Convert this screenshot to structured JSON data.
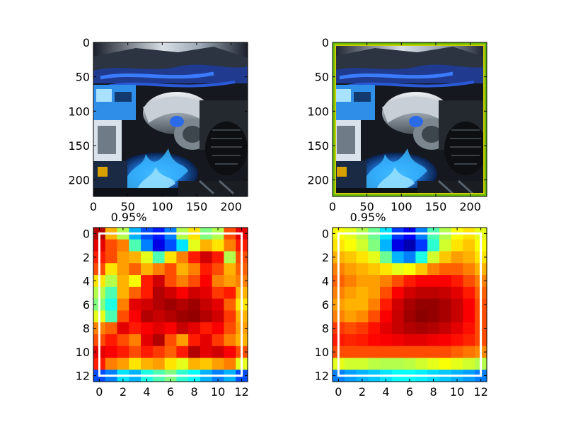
{
  "chart_data": [
    {
      "type": "image",
      "content": "photograph of a car engine bay with blue flame decals",
      "xticks": [
        0,
        50,
        100,
        150,
        200
      ],
      "yticks": [
        0,
        50,
        100,
        150,
        200
      ],
      "xlim": [
        0,
        224
      ],
      "ylim": [
        224,
        0
      ],
      "title": "",
      "frame_color": "#000000"
    },
    {
      "type": "image",
      "content": "same photograph with green bounding box outline",
      "xticks": [
        0,
        50,
        100,
        150,
        200
      ],
      "yticks": [
        0,
        50,
        100,
        150,
        200
      ],
      "xlim": [
        0,
        224
      ],
      "ylim": [
        224,
        0
      ],
      "title": "",
      "box_color": "#66bb00",
      "box_inner_color": "#cccc00"
    },
    {
      "type": "heatmap",
      "colormap": "jet",
      "title": "0.95%",
      "xticks": [
        0,
        2,
        4,
        6,
        8,
        10,
        12
      ],
      "yticks": [
        0,
        2,
        4,
        6,
        8,
        10,
        12
      ],
      "xlim": [
        -0.5,
        12.5
      ],
      "ylim": [
        12.5,
        -0.5
      ],
      "box_color": "#ffffff",
      "box": [
        0,
        0,
        12,
        12
      ],
      "values": [
        [
          0.95,
          0.7,
          0.55,
          0.3,
          0.2,
          0.15,
          0.25,
          0.55,
          0.65,
          0.5,
          0.55,
          0.8,
          0.9
        ],
        [
          0.9,
          0.8,
          0.75,
          0.45,
          0.25,
          0.1,
          0.2,
          0.35,
          0.6,
          0.7,
          0.65,
          0.75,
          0.85
        ],
        [
          0.85,
          0.8,
          0.72,
          0.7,
          0.6,
          0.45,
          0.65,
          0.75,
          0.85,
          0.92,
          0.85,
          0.55,
          0.8
        ],
        [
          0.8,
          0.65,
          0.72,
          0.78,
          0.7,
          0.75,
          0.8,
          0.7,
          0.75,
          0.85,
          0.8,
          0.7,
          0.78
        ],
        [
          0.65,
          0.55,
          0.7,
          0.62,
          0.85,
          0.92,
          0.8,
          0.75,
          0.8,
          0.88,
          0.75,
          0.72,
          0.75
        ],
        [
          0.55,
          0.45,
          0.7,
          0.78,
          0.85,
          0.95,
          0.92,
          0.88,
          0.92,
          0.9,
          0.82,
          0.85,
          0.7
        ],
        [
          0.5,
          0.4,
          0.75,
          0.9,
          0.92,
          0.95,
          0.97,
          0.95,
          0.97,
          0.93,
          0.9,
          0.78,
          0.65
        ],
        [
          0.6,
          0.45,
          0.8,
          0.88,
          0.95,
          0.93,
          0.95,
          0.97,
          0.98,
          0.95,
          0.92,
          0.82,
          0.7
        ],
        [
          0.75,
          0.78,
          0.9,
          0.85,
          0.88,
          0.9,
          0.88,
          0.93,
          0.9,
          0.85,
          0.88,
          0.8,
          0.72
        ],
        [
          0.8,
          0.85,
          0.8,
          0.75,
          0.9,
          0.95,
          0.8,
          0.72,
          0.85,
          0.9,
          0.82,
          0.75,
          0.7
        ],
        [
          0.9,
          0.88,
          0.85,
          0.8,
          0.85,
          0.82,
          0.78,
          0.85,
          0.95,
          0.9,
          0.92,
          0.88,
          0.8
        ],
        [
          0.85,
          0.75,
          0.72,
          0.65,
          0.7,
          0.72,
          0.65,
          0.6,
          0.7,
          0.68,
          0.72,
          0.75,
          0.6
        ],
        [
          0.2,
          0.25,
          0.35,
          0.3,
          0.4,
          0.45,
          0.5,
          0.42,
          0.38,
          0.3,
          0.25,
          0.3,
          0.2
        ]
      ]
    },
    {
      "type": "heatmap",
      "colormap": "jet",
      "title": "0.95%",
      "xticks": [
        0,
        2,
        4,
        6,
        8,
        10,
        12
      ],
      "yticks": [
        0,
        2,
        4,
        6,
        8,
        10,
        12
      ],
      "xlim": [
        -0.5,
        12.5
      ],
      "ylim": [
        12.5,
        -0.5
      ],
      "box_color": "#ffffff",
      "box": [
        0,
        0,
        12,
        12
      ],
      "values": [
        [
          0.62,
          0.6,
          0.55,
          0.48,
          0.35,
          0.18,
          0.12,
          0.25,
          0.45,
          0.55,
          0.62,
          0.65,
          0.6
        ],
        [
          0.65,
          0.62,
          0.58,
          0.5,
          0.3,
          0.1,
          0.05,
          0.18,
          0.42,
          0.58,
          0.65,
          0.68,
          0.62
        ],
        [
          0.7,
          0.68,
          0.65,
          0.6,
          0.48,
          0.3,
          0.25,
          0.4,
          0.58,
          0.68,
          0.72,
          0.7,
          0.65
        ],
        [
          0.75,
          0.72,
          0.7,
          0.68,
          0.65,
          0.6,
          0.62,
          0.68,
          0.75,
          0.78,
          0.78,
          0.75,
          0.7
        ],
        [
          0.78,
          0.75,
          0.72,
          0.72,
          0.75,
          0.8,
          0.85,
          0.88,
          0.88,
          0.88,
          0.85,
          0.8,
          0.75
        ],
        [
          0.75,
          0.72,
          0.7,
          0.72,
          0.8,
          0.88,
          0.92,
          0.94,
          0.94,
          0.93,
          0.9,
          0.85,
          0.78
        ],
        [
          0.72,
          0.7,
          0.7,
          0.75,
          0.85,
          0.92,
          0.96,
          0.98,
          0.98,
          0.96,
          0.93,
          0.88,
          0.8
        ],
        [
          0.75,
          0.72,
          0.74,
          0.8,
          0.88,
          0.93,
          0.97,
          0.99,
          0.98,
          0.96,
          0.93,
          0.88,
          0.8
        ],
        [
          0.82,
          0.8,
          0.82,
          0.86,
          0.9,
          0.93,
          0.95,
          0.96,
          0.95,
          0.93,
          0.9,
          0.86,
          0.8
        ],
        [
          0.85,
          0.84,
          0.85,
          0.87,
          0.88,
          0.89,
          0.9,
          0.9,
          0.89,
          0.88,
          0.86,
          0.84,
          0.8
        ],
        [
          0.8,
          0.8,
          0.8,
          0.8,
          0.8,
          0.8,
          0.8,
          0.8,
          0.8,
          0.8,
          0.78,
          0.76,
          0.74
        ],
        [
          0.6,
          0.58,
          0.58,
          0.56,
          0.55,
          0.55,
          0.56,
          0.58,
          0.6,
          0.62,
          0.6,
          0.58,
          0.55
        ],
        [
          0.25,
          0.28,
          0.3,
          0.32,
          0.35,
          0.38,
          0.38,
          0.36,
          0.34,
          0.32,
          0.3,
          0.28,
          0.25
        ]
      ]
    }
  ]
}
